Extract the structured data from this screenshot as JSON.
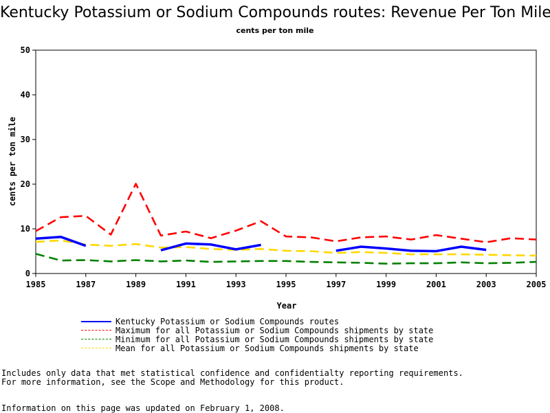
{
  "chart_data": {
    "type": "line",
    "title": "Kentucky Potassium or Sodium Compounds routes: Revenue Per Ton Mile",
    "subtitle": "cents per ton mile",
    "xlabel": "Year",
    "ylabel": "cents per ton mile",
    "xlim": [
      1985,
      2005
    ],
    "ylim": [
      0,
      50
    ],
    "x_ticks": [
      "1985",
      "1987",
      "1989",
      "1991",
      "1993",
      "1995",
      "1997",
      "1999",
      "2001",
      "2003",
      "2005"
    ],
    "y_ticks": [
      "0",
      "10",
      "20",
      "30",
      "40",
      "50"
    ],
    "x": [
      1985,
      1986,
      1987,
      1988,
      1989,
      1990,
      1991,
      1992,
      1993,
      1994,
      1995,
      1996,
      1997,
      1998,
      1999,
      2000,
      2001,
      2002,
      2003,
      2004,
      2005
    ],
    "series": [
      {
        "name": "Kentucky Potassium or Sodium Compounds routes",
        "color": "#0000ff",
        "style": "solid",
        "values": [
          7.8,
          8.2,
          6.2,
          null,
          null,
          5.2,
          6.7,
          6.5,
          5.4,
          6.4,
          null,
          null,
          5.1,
          6.0,
          5.6,
          5.1,
          5.0,
          6.0,
          5.3,
          null,
          null
        ]
      },
      {
        "name": "Maximum for all Potassium or Sodium Compounds shipments by state",
        "color": "#ff0000",
        "style": "dashed",
        "values": [
          9.5,
          12.6,
          12.9,
          8.7,
          20.1,
          8.5,
          9.4,
          7.9,
          9.6,
          11.7,
          8.3,
          8.1,
          7.2,
          8.1,
          8.3,
          7.6,
          8.6,
          7.8,
          7.0,
          7.9,
          7.6
        ]
      },
      {
        "name": "Minimum for all Potassium or Sodium Compounds shipments by state",
        "color": "#008000",
        "style": "dashed",
        "values": [
          4.4,
          2.9,
          3.0,
          2.7,
          3.0,
          2.7,
          2.9,
          2.6,
          2.7,
          2.8,
          2.8,
          2.6,
          2.5,
          2.4,
          2.2,
          2.3,
          2.3,
          2.5,
          2.3,
          2.4,
          2.6
        ]
      },
      {
        "name": "Mean for all Potassium or Sodium Compounds shipments by state",
        "color": "#ffd700",
        "style": "dashed",
        "values": [
          7.1,
          7.4,
          6.5,
          6.2,
          6.6,
          5.8,
          5.9,
          5.5,
          5.3,
          5.5,
          5.1,
          5.0,
          4.6,
          4.8,
          4.6,
          4.3,
          4.3,
          4.3,
          4.2,
          4.1,
          4.0
        ]
      }
    ]
  },
  "footnotes": {
    "line1": "Includes only data that met statistical confidence and confidentialty reporting requirements.",
    "line2": "For more information, see the Scope and Methodology for this product.",
    "line3": "Information on this page was updated on February 1, 2008."
  }
}
